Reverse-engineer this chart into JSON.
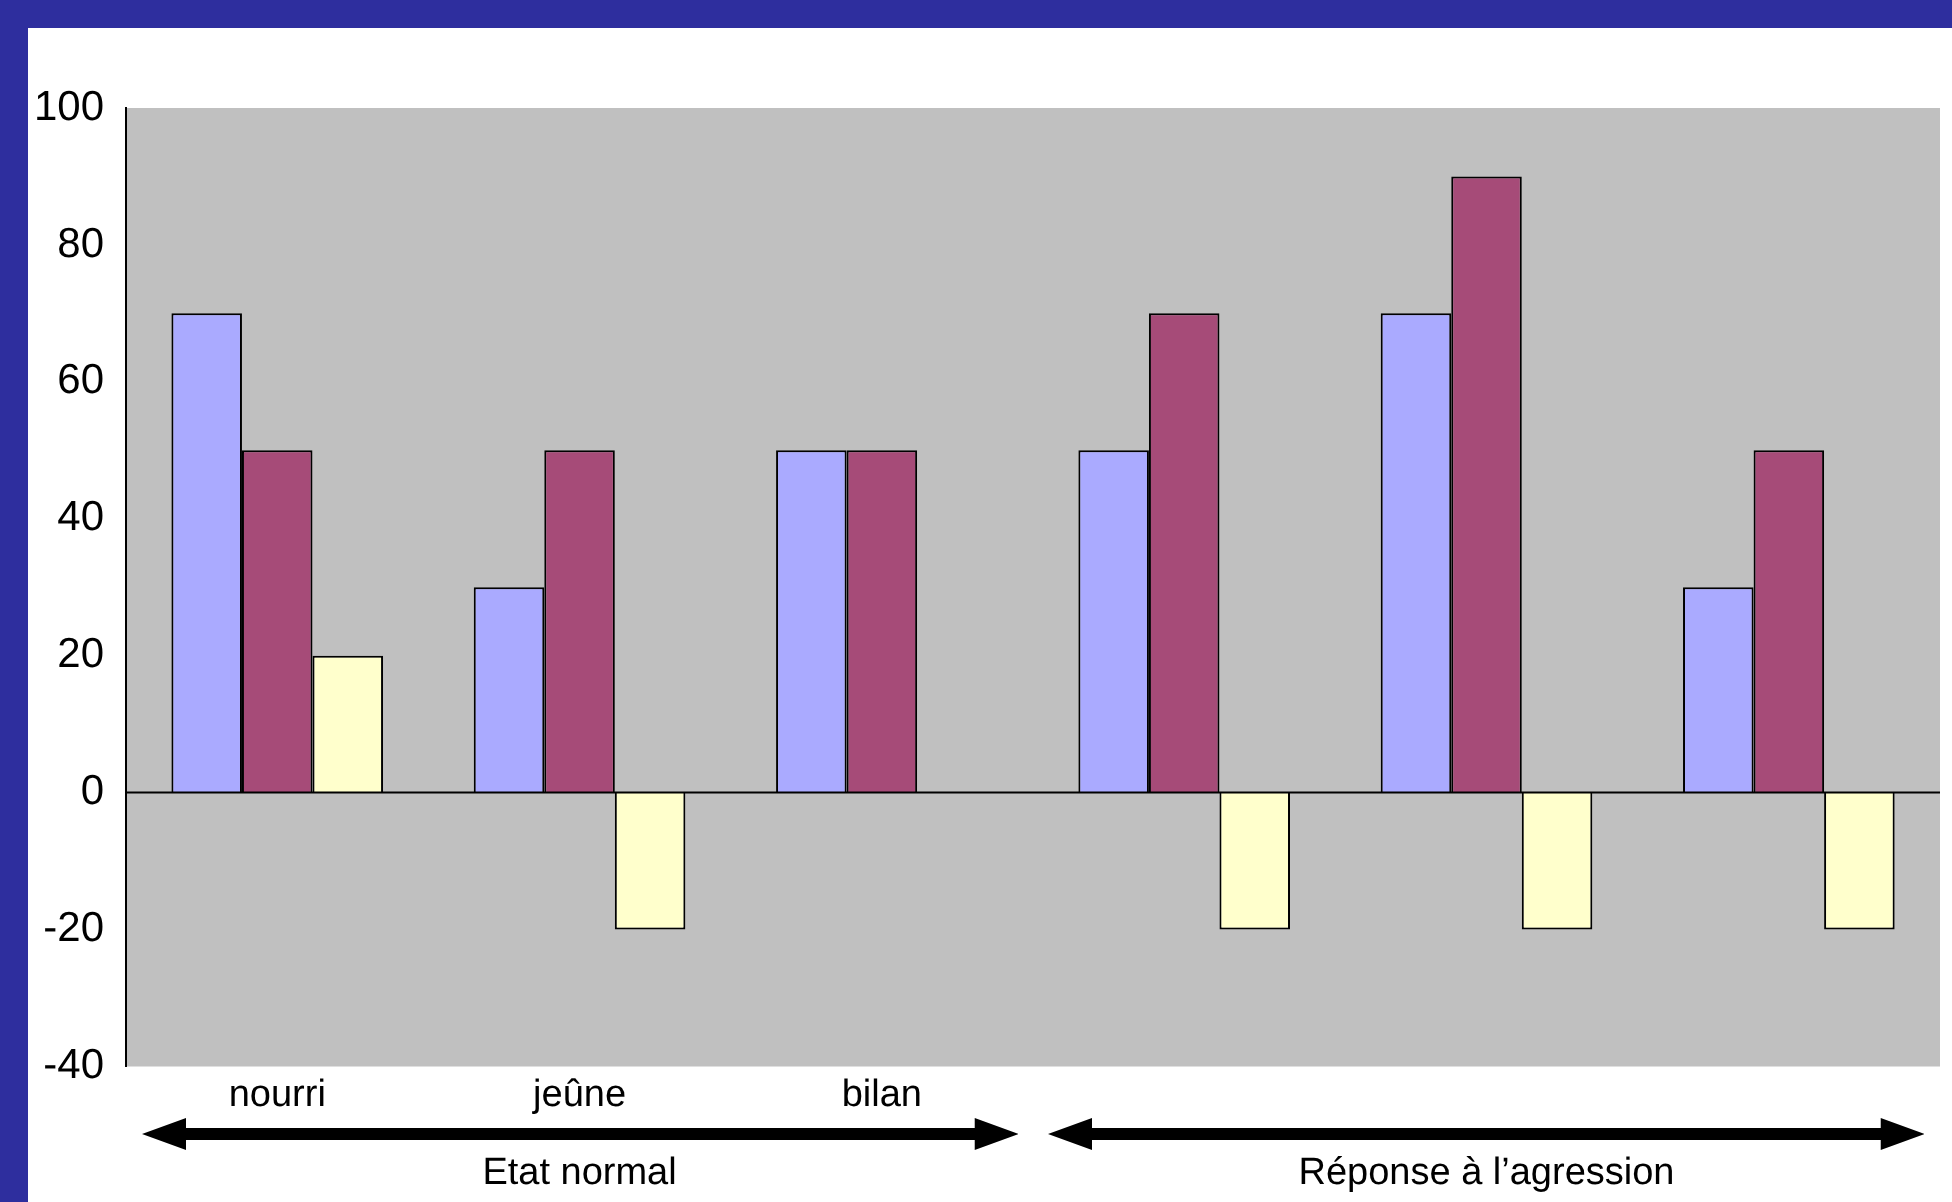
{
  "chart_data": {
    "type": "bar",
    "categories": [
      "nourri",
      "jeûne",
      "bilan",
      null,
      null,
      null
    ],
    "series": [
      {
        "color": "#aaaaff",
        "values": [
          70,
          30,
          50,
          50,
          70,
          30
        ]
      },
      {
        "color": "#a64b78",
        "values": [
          50,
          50,
          50,
          70,
          90,
          50
        ]
      },
      {
        "color": "#ffffcc",
        "values": [
          20,
          -20,
          null,
          -20,
          -20,
          -20
        ]
      }
    ],
    "ref_lines": [
      {
        "axis": "y",
        "value": 0,
        "color": "#000000"
      }
    ],
    "ylim": [
      -40,
      100
    ],
    "yticks": [
      -40,
      -20,
      0,
      20,
      40,
      60,
      80,
      100
    ],
    "grid": false,
    "legend": false,
    "annotations": [
      "Etat normal",
      "Réponse à l’agression"
    ]
  }
}
